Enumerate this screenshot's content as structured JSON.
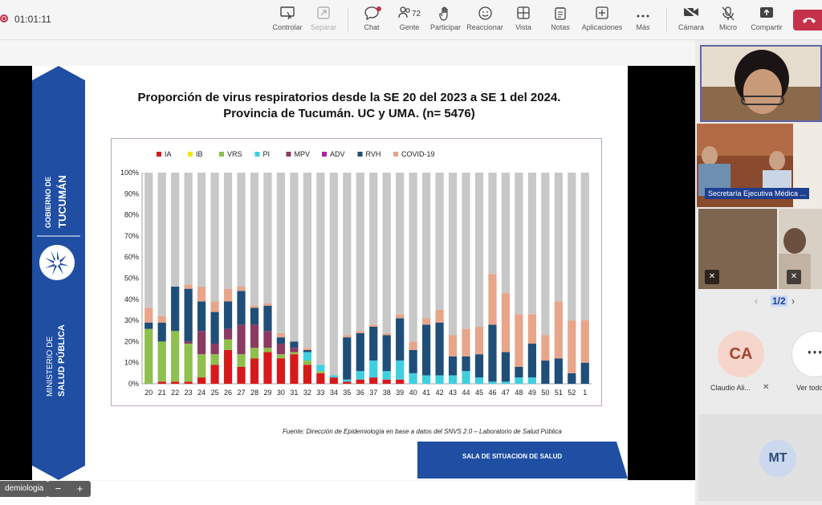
{
  "meeting": {
    "timer": "01:01:11",
    "toolbar": {
      "controlar": "Controlar",
      "separar": "Separar",
      "chat": "Chat",
      "gente": "Gente",
      "gente_count": "72",
      "participar": "Participar",
      "reaccionar": "Reaccionar",
      "vista": "Vista",
      "notas": "Notas",
      "aplicaciones": "Aplicaciones",
      "mas": "Más",
      "camara": "Cámara",
      "micro": "Micro",
      "compartir": "Compartir"
    }
  },
  "slide": {
    "ribbon_top": "GOBIERNO DE",
    "ribbon_top2": "TUCUMÁN",
    "ribbon_bottom": "MINISTERIO DE",
    "ribbon_bottom2": "SALUD PÚBLICA",
    "title_line1": "Proporción de virus respiratorios desde la SE 20 del 2023 a SE 1 del 2024.",
    "title_line2": "Provincia de Tucumán. UC y UMA. (n= 5476)",
    "source": "Fuente: Dirección de Epidemiología en base a datos del SNVS 2.0 – Laboratorio de Salud Pública",
    "footer_label": "SALA DE SITUACION  DE SALUD"
  },
  "chart_data": {
    "type": "bar",
    "stacked": true,
    "categories": [
      "20",
      "21",
      "22",
      "23",
      "24",
      "25",
      "26",
      "27",
      "28",
      "29",
      "30",
      "31",
      "32",
      "33",
      "34",
      "35",
      "36",
      "37",
      "38",
      "39",
      "40",
      "41",
      "42",
      "43",
      "44",
      "45",
      "46",
      "47",
      "48",
      "49",
      "50",
      "51",
      "52",
      "1"
    ],
    "ylim": [
      0,
      100
    ],
    "yticks": [
      "0%",
      "10%",
      "20%",
      "30%",
      "40%",
      "50%",
      "60%",
      "70%",
      "80%",
      "90%",
      "100%"
    ],
    "legend_position": "top",
    "colors": {
      "IA": "#d7191c",
      "IB": "#f2e600",
      "VRS": "#8fbf4d",
      "PI": "#3fd0e0",
      "MPV": "#8b3a62",
      "ADV": "#b31fa5",
      "RVH": "#1f4e79",
      "COVID-19": "#e8a58a",
      "Rest": "#c8c8c8"
    },
    "series": [
      {
        "name": "IA",
        "values": [
          0,
          1,
          1,
          1,
          3,
          9,
          16,
          8,
          12,
          15,
          12,
          14,
          9,
          5,
          3,
          1,
          2,
          3,
          2,
          2,
          0,
          0,
          0,
          0,
          0,
          0,
          0,
          0,
          0,
          0,
          0,
          0,
          0,
          0
        ]
      },
      {
        "name": "IB",
        "values": [
          0,
          0,
          0,
          0,
          0,
          0,
          0,
          0,
          0,
          0,
          0,
          0,
          0,
          0,
          0,
          0,
          0,
          0,
          0,
          0,
          0,
          0,
          0,
          0,
          0,
          0,
          0,
          0,
          0,
          0,
          0,
          0,
          0,
          0
        ]
      },
      {
        "name": "VRS",
        "values": [
          26,
          19,
          24,
          18,
          11,
          5,
          5,
          6,
          5,
          2,
          2,
          1,
          2,
          1,
          0,
          0,
          0,
          0,
          0,
          0,
          0,
          0,
          0,
          0,
          0,
          0,
          0,
          0,
          0,
          0,
          0,
          0,
          0,
          0
        ]
      },
      {
        "name": "PI",
        "values": [
          0,
          0,
          0,
          0,
          0,
          0,
          0,
          0,
          0,
          0,
          0,
          0,
          4,
          3,
          1,
          1,
          4,
          8,
          4,
          9,
          5,
          4,
          4,
          4,
          6,
          3,
          1,
          1,
          3,
          3,
          0,
          0,
          0,
          0
        ]
      },
      {
        "name": "MPV",
        "values": [
          0,
          0,
          0,
          1,
          11,
          5,
          5,
          14,
          11,
          8,
          5,
          2,
          0,
          0,
          0,
          0,
          0,
          0,
          0,
          0,
          0,
          0,
          0,
          0,
          0,
          0,
          0,
          0,
          0,
          0,
          0,
          0,
          0,
          0
        ]
      },
      {
        "name": "ADV",
        "values": [
          0,
          0,
          0,
          0,
          0,
          0,
          0,
          0,
          0,
          0,
          0,
          0,
          0,
          0,
          0,
          0,
          0,
          0,
          0,
          0,
          0,
          0,
          0,
          0,
          0,
          0,
          0,
          0,
          0,
          0,
          0,
          0,
          0,
          0
        ]
      },
      {
        "name": "RVH",
        "values": [
          3,
          9,
          21,
          25,
          14,
          15,
          13,
          16,
          8,
          12,
          3,
          3,
          1,
          0,
          0,
          20,
          18,
          16,
          17,
          20,
          11,
          24,
          25,
          9,
          7,
          11,
          27,
          14,
          5,
          16,
          11,
          12,
          5,
          10
        ]
      },
      {
        "name": "COVID-19",
        "values": [
          7,
          3,
          0,
          2,
          7,
          5,
          6,
          2,
          1,
          1,
          2,
          0,
          1,
          0,
          0,
          1,
          1,
          1,
          1,
          2,
          4,
          3,
          6,
          10,
          13,
          13,
          24,
          28,
          25,
          14,
          12,
          27,
          25,
          20
        ]
      }
    ]
  },
  "doc": {
    "tab_label": "demiologia",
    "zoom_minus": "−",
    "zoom_plus": "+"
  },
  "participants": {
    "name_tag": "Secretaría Ejecutiva Médica ...",
    "pager": "1/2",
    "ca_initials": "CA",
    "ca_name": "Claudio Ali...",
    "ver_todo": "Ver todo",
    "mt_initials": "MT",
    "more_glyph": "⋯"
  }
}
